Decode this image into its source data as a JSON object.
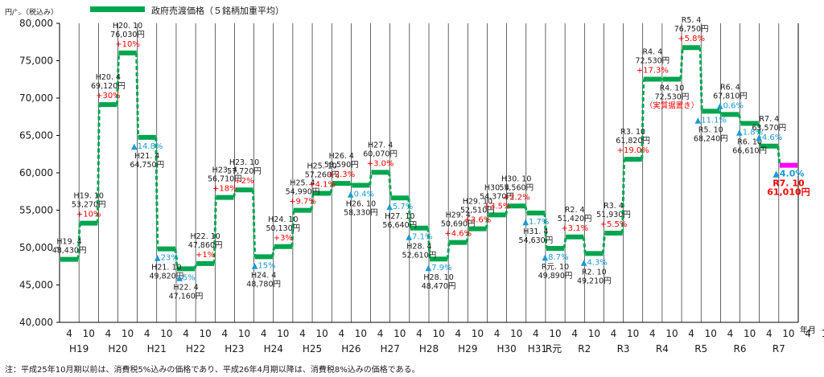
{
  "chart_data": {
    "type": "line",
    "ylabel": "円/㌧（税込み）",
    "ylim": [
      40000,
      80000
    ],
    "yticks": [
      "40,000",
      "45,000",
      "50,000",
      "55,000",
      "60,000",
      "65,000",
      "70,000",
      "75,000",
      "80,000"
    ],
    "xunit": "年月",
    "legend": {
      "label": "政府売渡価格（５銘柄加重平均）",
      "position": "top"
    },
    "grid": "vertical",
    "years": [
      "H19",
      "H20",
      "H21",
      "H22",
      "H23",
      "H24",
      "H25",
      "H26",
      "H27",
      "H28",
      "H29",
      "H30",
      "H31",
      "R元",
      "R2",
      "R3",
      "R4",
      "R5",
      "R6",
      "R7"
    ],
    "months": [
      "4",
      "10",
      "4",
      "10",
      "4",
      "10",
      "4",
      "10",
      "4",
      "10",
      "4",
      "10",
      "4",
      "10",
      "4",
      "10",
      "4",
      "10",
      "4",
      "10",
      "4",
      "10",
      "4",
      "10",
      "4",
      "10",
      "4",
      "10",
      "4",
      "10",
      "4",
      "10",
      "4",
      "10",
      "4",
      "10",
      "4",
      "10",
      "4",
      "10"
    ],
    "series": [
      {
        "name": "政府売渡価格（５銘柄加重平均）",
        "points": [
          {
            "period": "H19.4",
            "value": 48430,
            "label": "H19. 4\n48,430円",
            "change": ""
          },
          {
            "period": "H19.10",
            "value": 53270,
            "label": "H19. 10\n53,270円",
            "change": "+10%"
          },
          {
            "period": "H20.4",
            "value": 69120,
            "label": "H20. 4\n69,120円",
            "change": "+30%"
          },
          {
            "period": "H20.10",
            "value": 76030,
            "label": "H20. 10\n76,030円",
            "change": "+10%"
          },
          {
            "period": "H21.4",
            "value": 64750,
            "label": "H21. 4\n64,750円",
            "change": "▲14.8%"
          },
          {
            "period": "H21.10",
            "value": 49820,
            "label": "H21. 10\n49,820円",
            "change": "▲23%"
          },
          {
            "period": "H22.4",
            "value": 47160,
            "label": "H22. 4\n47,160円",
            "change": "▲5%"
          },
          {
            "period": "H22.10",
            "value": 47860,
            "label": "H22. 10\n47,860円",
            "change": "+1%"
          },
          {
            "period": "H23.4",
            "value": 56710,
            "label": "H23. 4\n56,710円",
            "change": "+18%"
          },
          {
            "period": "H23.10",
            "value": 57720,
            "label": "H23. 10\n57,720円",
            "change": "+2%"
          },
          {
            "period": "H24.4",
            "value": 48780,
            "label": "H24. 4\n48,780円",
            "change": "▲15%"
          },
          {
            "period": "H24.10",
            "value": 50130,
            "label": "H24. 10\n50,130円",
            "change": "+3%"
          },
          {
            "period": "H25.4",
            "value": 54990,
            "label": "H25. 4\n54,990円",
            "change": "+9.7%"
          },
          {
            "period": "H25.10",
            "value": 57260,
            "label": "H25. 10\n57,260円",
            "change": "+4.1%"
          },
          {
            "period": "H26.4",
            "value": 58590,
            "label": "H26. 4\n58,590円",
            "change": "+2.3%"
          },
          {
            "period": "H26.10",
            "value": 58330,
            "label": "H26. 10\n58,330円",
            "change": "▲0.4%"
          },
          {
            "period": "H27.4",
            "value": 60070,
            "label": "H27. 4\n60,070円",
            "change": "+3.0%"
          },
          {
            "period": "H27.10",
            "value": 56640,
            "label": "H27. 10\n56,640円",
            "change": "▲5.7%"
          },
          {
            "period": "H28.4",
            "value": 52610,
            "label": "H28. 4\n52,610円",
            "change": "▲7.1%"
          },
          {
            "period": "H28.10",
            "value": 48470,
            "label": "H28. 10\n48,470円",
            "change": "▲7.9%"
          },
          {
            "period": "H29.4",
            "value": 50690,
            "label": "H29. 4\n50,690円",
            "change": "+4.6%"
          },
          {
            "period": "H29.10",
            "value": 52510,
            "label": "H29. 10\n52,510円",
            "change": "+3.6%"
          },
          {
            "period": "H30.4",
            "value": 54370,
            "label": "H30. 4\n54,370円",
            "change": "+3.5%"
          },
          {
            "period": "H30.10",
            "value": 55560,
            "label": "H30. 10\n55,560円",
            "change": "+2.2%"
          },
          {
            "period": "H31.4",
            "value": 54630,
            "label": "H31. 4\n54,630円",
            "change": "▲1.7%"
          },
          {
            "period": "R元.10",
            "value": 49890,
            "label": "R元. 10\n49,890円",
            "change": "▲8.7%"
          },
          {
            "period": "R2.4",
            "value": 51420,
            "label": "R2. 4\n51,420円",
            "change": "+3.1%"
          },
          {
            "period": "R2.10",
            "value": 49210,
            "label": "R2. 10\n49,210円",
            "change": "▲4.3%"
          },
          {
            "period": "R3.4",
            "value": 51930,
            "label": "R3. 4\n51,930円",
            "change": "+5.5%"
          },
          {
            "period": "R3.10",
            "value": 61820,
            "label": "R3. 10\n61,820円",
            "change": "+19.0%"
          },
          {
            "period": "R4.4",
            "value": 72530,
            "label": "R4. 4\n72,530円",
            "change": "+17.3%"
          },
          {
            "period": "R4.10",
            "value": 72530,
            "label": "R4. 10\n72,530円\n（実質据置き）",
            "change": ""
          },
          {
            "period": "R5.4",
            "value": 76750,
            "label": "R5. 4\n76,750円",
            "change": "+5.8%"
          },
          {
            "period": "R5.10",
            "value": 68240,
            "label": "R5. 10\n68,240円",
            "change": "▲11.1%"
          },
          {
            "period": "R6.4",
            "value": 67810,
            "label": "R6. 4\n67,810円",
            "change": "▲0.6%"
          },
          {
            "period": "R6.10",
            "value": 66610,
            "label": "R6. 10\n66,610円",
            "change": "▲1.8%"
          },
          {
            "period": "R7.4",
            "value": 63570,
            "label": "R7. 4\n63,570円",
            "change": "▲4.6%"
          },
          {
            "period": "R7.10",
            "value": 61010,
            "label": "R7. 10\n61,010円",
            "change": "▲4.0%"
          }
        ]
      }
    ]
  },
  "footnote": "注：平成25年10月期以前は、消費税5%込みの価格であり、平成26年4月期以降は、消費税8%込みの価格である。",
  "colors": {
    "series": "#00a54f",
    "highlight": "#ff00ff",
    "increase": "#ff0000",
    "decrease": "#1a9ad6",
    "text": "#1a1a1a",
    "grid": "#000000"
  }
}
